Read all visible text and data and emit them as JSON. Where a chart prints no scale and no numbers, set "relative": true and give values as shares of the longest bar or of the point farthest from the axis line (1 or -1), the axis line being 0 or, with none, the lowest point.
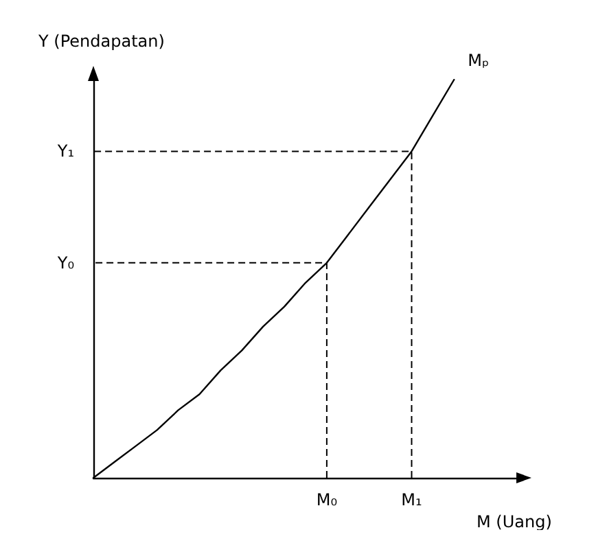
{
  "chart_data": {
    "type": "line",
    "xlabel": "M (Uang)",
    "ylabel": "Y (Pendapatan)",
    "relative": true,
    "categories": [
      null,
      null,
      null,
      null,
      null,
      null,
      null,
      null,
      null,
      null,
      null,
      "M₀",
      null,
      null,
      null,
      "M₁",
      null,
      null,
      null,
      null,
      null
    ],
    "grid": false,
    "legend": false,
    "marker": "none",
    "series": [
      {
        "name": "Mₚ",
        "color": "#000000",
        "values": [
          0,
          0.04,
          0.08,
          0.12,
          0.17,
          0.21,
          0.27,
          0.32,
          0.38,
          0.43,
          0.49,
          0.54,
          0.61,
          0.68,
          0.75,
          0.82,
          0.91,
          1,
          null,
          null,
          null
        ]
      }
    ],
    "annotations": [
      "Y₀",
      "Y₁"
    ]
  }
}
